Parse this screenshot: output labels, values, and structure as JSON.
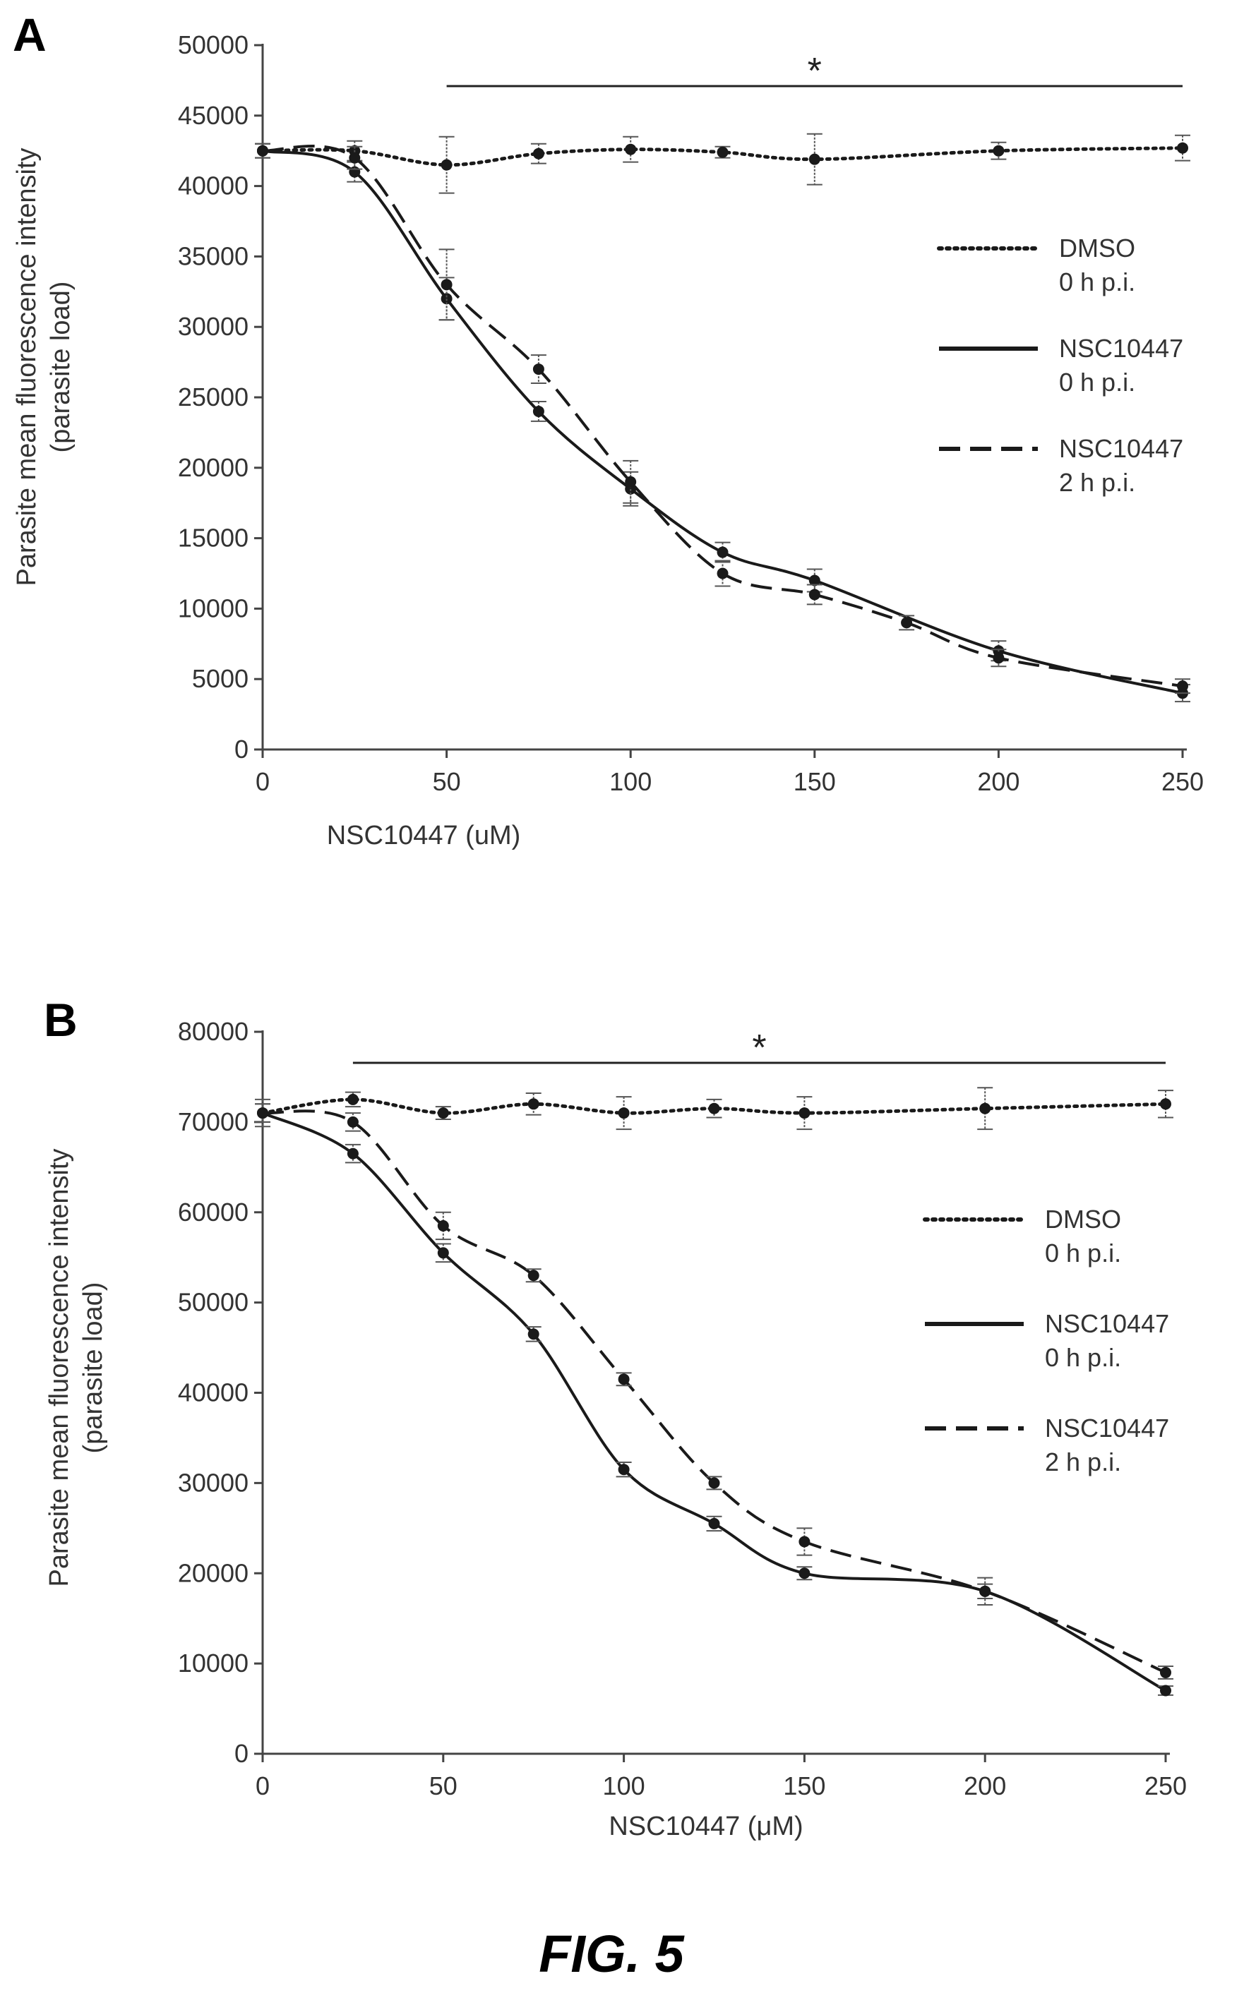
{
  "figure": {
    "caption": "FIG. 5"
  },
  "chart_data": [
    {
      "panel": "A",
      "type": "line",
      "xlabel": "NSC10447  (uM)",
      "ylabel": "Parasite mean fluorescence intensity",
      "ylabel2": "(parasite load)",
      "xlim": [
        0,
        250
      ],
      "ylim": [
        0,
        50000
      ],
      "xticks": [
        "0",
        "50",
        "100",
        "150",
        "200",
        "250"
      ],
      "yticks": [
        "0",
        "5000",
        "10000",
        "15000",
        "20000",
        "25000",
        "30000",
        "35000",
        "40000",
        "45000",
        "50000"
      ],
      "significance": {
        "label": "*",
        "from": 50,
        "to": 250
      },
      "legend_position": "right",
      "series": [
        {
          "name": "DMSO",
          "name_line2": "0 h p.i.",
          "style": "dotted",
          "x": [
            0,
            25,
            50,
            75,
            100,
            125,
            150,
            200,
            250
          ],
          "y": [
            42500,
            42500,
            41500,
            42300,
            42600,
            42400,
            41900,
            42500,
            42700
          ],
          "err": [
            500,
            700,
            2000,
            700,
            900,
            400,
            1800,
            600,
            900
          ]
        },
        {
          "name": "NSC10447",
          "name_line2": "0 h p.i.",
          "style": "solid",
          "x": [
            0,
            25,
            50,
            75,
            100,
            125,
            150,
            200,
            250
          ],
          "y": [
            42500,
            41000,
            32000,
            24000,
            18500,
            14000,
            12000,
            7000,
            4000
          ],
          "err": [
            500,
            700,
            1500,
            700,
            1200,
            700,
            800,
            700,
            600
          ]
        },
        {
          "name": "NSC10447",
          "name_line2": "2 h p.i.",
          "style": "dashed",
          "x": [
            0,
            25,
            50,
            75,
            100,
            125,
            150,
            175,
            200,
            250
          ],
          "y": [
            42500,
            42000,
            33000,
            27000,
            19000,
            12500,
            11000,
            9000,
            6500,
            4500
          ],
          "err": [
            500,
            800,
            2500,
            1000,
            1500,
            900,
            700,
            500,
            600,
            500
          ]
        }
      ]
    },
    {
      "panel": "B",
      "type": "line",
      "xlabel": "NSC10447  (μM)",
      "ylabel": "Parasite mean fluorescence intensity",
      "ylabel2": "(parasite load)",
      "xlim": [
        0,
        250
      ],
      "ylim": [
        0,
        80000
      ],
      "xticks": [
        "0",
        "50",
        "100",
        "150",
        "200",
        "250"
      ],
      "yticks": [
        "0",
        "10000",
        "20000",
        "30000",
        "40000",
        "50000",
        "60000",
        "70000",
        "80000"
      ],
      "significance": {
        "label": "*",
        "from": 25,
        "to": 250
      },
      "legend_position": "right",
      "series": [
        {
          "name": "DMSO",
          "name_line2": "0 h p.i.",
          "style": "dotted",
          "x": [
            0,
            25,
            50,
            75,
            100,
            125,
            150,
            200,
            250
          ],
          "y": [
            71000,
            72500,
            71000,
            72000,
            71000,
            71500,
            71000,
            71500,
            72000
          ],
          "err": [
            1500,
            800,
            700,
            1200,
            1800,
            1000,
            1800,
            2300,
            1500
          ]
        },
        {
          "name": "NSC10447",
          "name_line2": "0 h p.i.",
          "style": "solid",
          "x": [
            0,
            25,
            50,
            75,
            100,
            125,
            150,
            200,
            250
          ],
          "y": [
            71000,
            66500,
            55500,
            46500,
            31500,
            25500,
            20000,
            18000,
            7000
          ],
          "err": [
            1000,
            1000,
            1000,
            800,
            800,
            800,
            700,
            800,
            500
          ]
        },
        {
          "name": "NSC10447",
          "name_line2": "2 h p.i.",
          "style": "dashed",
          "x": [
            0,
            25,
            50,
            75,
            100,
            125,
            150,
            200,
            250
          ],
          "y": [
            71000,
            70000,
            58500,
            53000,
            41500,
            30000,
            23500,
            18000,
            9000
          ],
          "err": [
            1000,
            1000,
            1500,
            700,
            700,
            700,
            1500,
            1500,
            700
          ]
        }
      ]
    }
  ]
}
